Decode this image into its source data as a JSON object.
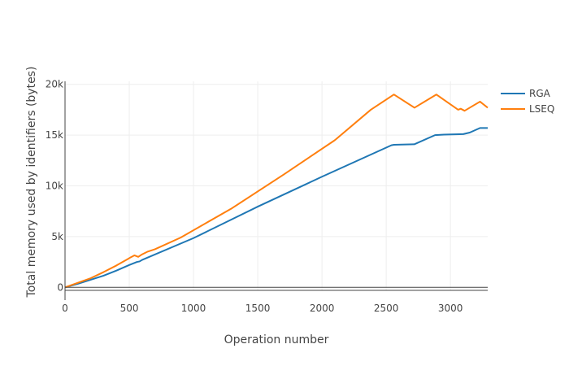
{
  "chart_data": {
    "type": "line",
    "xlabel": "Operation number",
    "ylabel": "Total memory used by identifiers (bytes)",
    "xlim": [
      0,
      3290
    ],
    "ylim": [
      -300,
      20300
    ],
    "x_ticks": [
      0,
      500,
      1000,
      1500,
      2000,
      2500,
      3000
    ],
    "x_tick_labels": [
      "0",
      "500",
      "1000",
      "1500",
      "2000",
      "2500",
      "3000"
    ],
    "y_ticks": [
      0,
      5000,
      10000,
      15000,
      20000
    ],
    "y_tick_labels": [
      "0",
      "5k",
      "10k",
      "15k",
      "20k"
    ],
    "grid": true,
    "legend_position": "top-right",
    "series": [
      {
        "name": "RGA",
        "color": "#1f77b4",
        "points": [
          [
            0,
            0
          ],
          [
            100,
            350
          ],
          [
            200,
            750
          ],
          [
            300,
            1150
          ],
          [
            400,
            1650
          ],
          [
            500,
            2200
          ],
          [
            560,
            2500
          ],
          [
            580,
            2550
          ],
          [
            600,
            2700
          ],
          [
            1000,
            4850
          ],
          [
            1500,
            7950
          ],
          [
            2000,
            10900
          ],
          [
            2540,
            14000
          ],
          [
            2560,
            14050
          ],
          [
            2720,
            14100
          ],
          [
            2880,
            15000
          ],
          [
            2950,
            15050
          ],
          [
            3100,
            15100
          ],
          [
            3150,
            15250
          ],
          [
            3230,
            15700
          ],
          [
            3290,
            15700
          ]
        ]
      },
      {
        "name": "LSEQ",
        "color": "#ff7f0e",
        "points": [
          [
            0,
            0
          ],
          [
            100,
            450
          ],
          [
            200,
            900
          ],
          [
            300,
            1500
          ],
          [
            400,
            2150
          ],
          [
            490,
            2800
          ],
          [
            510,
            2950
          ],
          [
            540,
            3150
          ],
          [
            570,
            3000
          ],
          [
            600,
            3250
          ],
          [
            640,
            3500
          ],
          [
            700,
            3750
          ],
          [
            900,
            4900
          ],
          [
            1300,
            7800
          ],
          [
            1700,
            11100
          ],
          [
            2100,
            14500
          ],
          [
            2380,
            17500
          ],
          [
            2560,
            19000
          ],
          [
            2720,
            17700
          ],
          [
            2890,
            19000
          ],
          [
            3060,
            17500
          ],
          [
            3080,
            17600
          ],
          [
            3110,
            17400
          ],
          [
            3150,
            17700
          ],
          [
            3230,
            18300
          ],
          [
            3290,
            17700
          ]
        ]
      }
    ]
  }
}
